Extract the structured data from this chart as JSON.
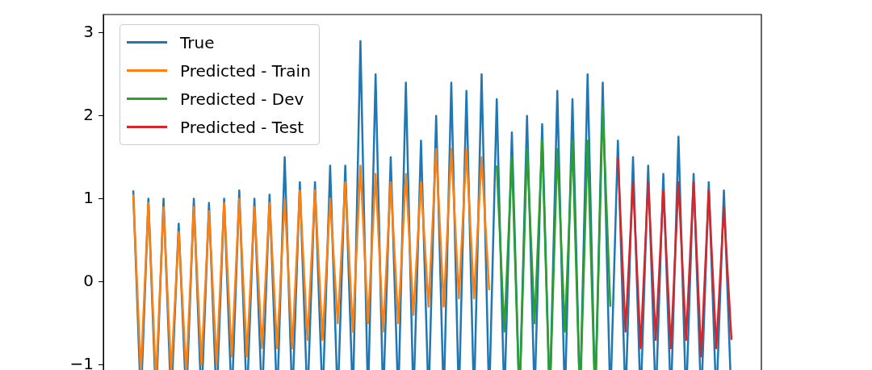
{
  "chart_data": {
    "type": "line",
    "categories": [
      null,
      null,
      null,
      null,
      null,
      null,
      null,
      null,
      null,
      null,
      null,
      null,
      null,
      null,
      null,
      null,
      null,
      null,
      null,
      null,
      null,
      null,
      null,
      null,
      null,
      null,
      null,
      null,
      null,
      null,
      null,
      null,
      null,
      null,
      null,
      null,
      null,
      null,
      null,
      null,
      null,
      null,
      null,
      null,
      null,
      null,
      null,
      null,
      null,
      null,
      null,
      null,
      null,
      null,
      null,
      null,
      null,
      null,
      null,
      null,
      null,
      null,
      null,
      null,
      null,
      null,
      null,
      null,
      null,
      null,
      null,
      null,
      null,
      null,
      null,
      null,
      null,
      null,
      null,
      null
    ],
    "series": [
      {
        "name": "True",
        "color": "#1f77b4",
        "values": [
          1.1,
          -1.45,
          1.0,
          -1.45,
          1.0,
          -1.45,
          0.7,
          -1.45,
          1.0,
          -1.45,
          0.95,
          -1.45,
          1.0,
          -1.45,
          1.1,
          -1.45,
          1.0,
          -1.45,
          1.05,
          -1.45,
          1.5,
          -1.45,
          1.2,
          -1.45,
          1.2,
          -1.45,
          1.4,
          -1.45,
          1.4,
          -1.45,
          2.9,
          -1.45,
          2.5,
          -1.45,
          1.5,
          -1.45,
          2.4,
          -1.45,
          1.7,
          -1.45,
          2.0,
          -1.45,
          2.4,
          -1.45,
          2.3,
          -1.45,
          2.5,
          -1.45,
          2.2,
          -1.45,
          1.8,
          -1.45,
          2.0,
          -1.4,
          1.9,
          -1.45,
          2.3,
          -1.45,
          2.2,
          -1.45,
          2.5,
          -1.45,
          2.4,
          -1.45,
          1.7,
          -1.45,
          1.5,
          -1.45,
          1.4,
          -1.45,
          1.3,
          -1.45,
          1.75,
          -1.45,
          1.3,
          -1.45,
          1.2,
          -1.45,
          1.1,
          -1.45
        ]
      },
      {
        "name": "Predicted - Train",
        "color": "#ff7f0e",
        "values": [
          1.05,
          -1.1,
          0.95,
          -1.2,
          0.9,
          -1.1,
          0.6,
          -1.1,
          0.9,
          -1.0,
          0.85,
          -1.0,
          0.95,
          -0.9,
          1.0,
          -0.9,
          0.9,
          -0.8,
          0.95,
          -0.8,
          1.0,
          -0.8,
          1.1,
          -0.7,
          1.1,
          -0.7,
          1.0,
          -0.5,
          1.2,
          -0.6,
          1.4,
          -0.5,
          1.3,
          -0.6,
          1.2,
          -0.5,
          1.3,
          -0.4,
          1.2,
          -0.3,
          1.6,
          -0.3,
          1.6,
          -0.2,
          1.6,
          -0.2,
          1.5,
          -0.1,
          null,
          null,
          null,
          null,
          null,
          null,
          null,
          null,
          null,
          null,
          null,
          null,
          null,
          null,
          null,
          null,
          null,
          null,
          null,
          null,
          null,
          null,
          null,
          null,
          null,
          null,
          null,
          null,
          null,
          null,
          null,
          null
        ]
      },
      {
        "name": "Predicted - Dev",
        "color": "#2ca02c",
        "values": [
          null,
          null,
          null,
          null,
          null,
          null,
          null,
          null,
          null,
          null,
          null,
          null,
          null,
          null,
          null,
          null,
          null,
          null,
          null,
          null,
          null,
          null,
          null,
          null,
          null,
          null,
          null,
          null,
          null,
          null,
          null,
          null,
          null,
          null,
          null,
          null,
          null,
          null,
          null,
          null,
          null,
          null,
          null,
          null,
          null,
          null,
          null,
          null,
          1.4,
          -0.6,
          1.5,
          -1.45,
          1.6,
          -0.5,
          1.7,
          -1.45,
          1.6,
          -0.6,
          1.7,
          -1.45,
          1.7,
          -1.45,
          2.1,
          -0.3,
          null,
          null,
          null,
          null,
          null,
          null,
          null,
          null,
          null,
          null,
          null,
          null,
          null,
          null,
          null,
          null
        ]
      },
      {
        "name": "Predicted - Test",
        "color": "#d62728",
        "values": [
          null,
          null,
          null,
          null,
          null,
          null,
          null,
          null,
          null,
          null,
          null,
          null,
          null,
          null,
          null,
          null,
          null,
          null,
          null,
          null,
          null,
          null,
          null,
          null,
          null,
          null,
          null,
          null,
          null,
          null,
          null,
          null,
          null,
          null,
          null,
          null,
          null,
          null,
          null,
          null,
          null,
          null,
          null,
          null,
          null,
          null,
          null,
          null,
          null,
          null,
          null,
          null,
          null,
          null,
          null,
          null,
          null,
          null,
          null,
          null,
          null,
          null,
          null,
          null,
          1.5,
          -0.6,
          1.2,
          -0.8,
          1.2,
          -0.7,
          1.1,
          -0.8,
          1.2,
          -0.7,
          1.2,
          -0.9,
          1.1,
          -0.8,
          0.9,
          -0.7
        ]
      }
    ],
    "ylim": [
      -1.48,
      3.22
    ],
    "yticks": [
      -1,
      0,
      1,
      2,
      3
    ],
    "tick_labels": "y",
    "legend": "top left"
  }
}
